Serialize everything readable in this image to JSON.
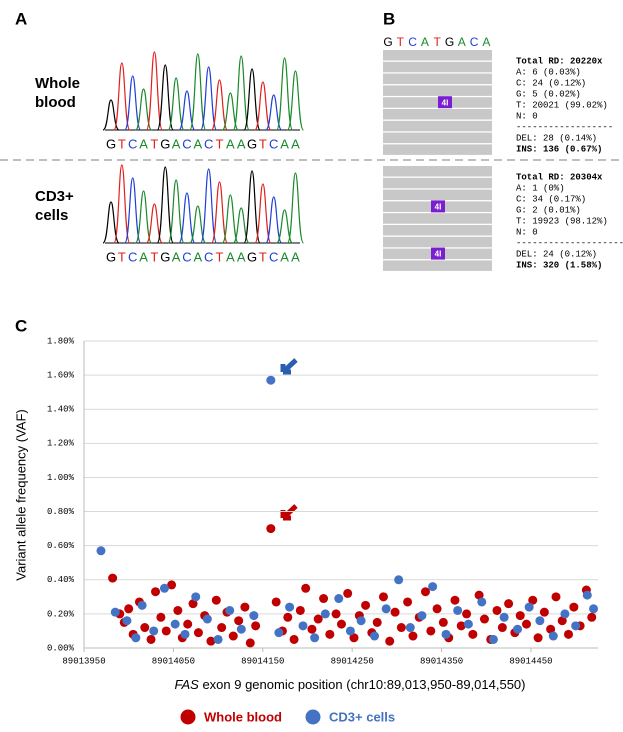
{
  "panel_a": {
    "label": "A",
    "rows": [
      {
        "label": [
          "Whole",
          "blood"
        ],
        "sequence": [
          "G",
          "T",
          "C",
          "A",
          "T",
          "G",
          "A",
          "C",
          "A",
          "C",
          "T",
          "A",
          "A",
          "G",
          "T",
          "C",
          "A",
          "A"
        ]
      },
      {
        "label": [
          "CD3+",
          "cells"
        ],
        "sequence": [
          "G",
          "T",
          "C",
          "A",
          "T",
          "G",
          "A",
          "C",
          "A",
          "C",
          "T",
          "A",
          "A",
          "G",
          "T",
          "C",
          "A",
          "A"
        ]
      }
    ]
  },
  "panel_b": {
    "label": "B",
    "sequence": [
      "G",
      "T",
      "C",
      "A",
      "T",
      "G",
      "A",
      "C",
      "A"
    ],
    "blocks": [
      {
        "markers": [
          "4I"
        ],
        "stats": [
          "Total RD: 20220x",
          "A: 6 (0.03%)",
          "C: 24 (0.12%)",
          "G: 5 (0.02%)",
          "T: 20021 (99.02%)",
          "N: 0",
          "------------------",
          "DEL: 28 (0.14%)",
          "INS: 136 (0.67%)"
        ]
      },
      {
        "markers": [
          "4I",
          "4I"
        ],
        "stats": [
          "Total RD: 20304x",
          "A: 1 (0%)",
          "C: 34 (0.17%)",
          "G: 2 (0.01%)",
          "T: 19923 (98.12%)",
          "N: 0",
          "--------------------",
          "DEL: 24 (0.12%)",
          "INS: 320 (1.58%)"
        ]
      }
    ]
  },
  "chart_data": {
    "type": "scatter",
    "panel_label": "C",
    "y_label": "Variant allele frequency (VAF)",
    "x_label": {
      "gene": "FAS",
      "text": "exon 9 genomic position (chr10:89,013,950-89,014,550)"
    },
    "xlim": [
      89013950,
      89014525
    ],
    "xticks": [
      89013950,
      89014050,
      89014150,
      89014250,
      89014350,
      89014450
    ],
    "ylim": [
      0,
      1.8
    ],
    "yticks": [
      {
        "value": 0,
        "label": "0.00%"
      },
      {
        "value": 0.2,
        "label": "0.20%"
      },
      {
        "value": 0.4,
        "label": "0.40%"
      },
      {
        "value": 0.6,
        "label": "0.60%"
      },
      {
        "value": 0.8,
        "label": "0.80%"
      },
      {
        "value": 1.0,
        "label": "1.00%"
      },
      {
        "value": 1.2,
        "label": "1.20%"
      },
      {
        "value": 1.4,
        "label": "1.40%"
      },
      {
        "value": 1.6,
        "label": "1.60%"
      },
      {
        "value": 1.8,
        "label": "1.80%"
      }
    ],
    "grid": true,
    "series": [
      {
        "name": "Whole blood",
        "color": "#c00000",
        "x": [
          89013982,
          89013990,
          89013995,
          89014000,
          89014005,
          89014012,
          89014018,
          89014025,
          89014030,
          89014036,
          89014042,
          89014048,
          89014055,
          89014060,
          89014066,
          89014072,
          89014078,
          89014085,
          89014092,
          89014098,
          89014104,
          89014110,
          89014117,
          89014123,
          89014130,
          89014136,
          89014142,
          89014159,
          89014165,
          89014172,
          89014178,
          89014185,
          89014192,
          89014198,
          89014205,
          89014212,
          89014218,
          89014225,
          89014232,
          89014238,
          89014245,
          89014252,
          89014258,
          89014265,
          89014272,
          89014278,
          89014285,
          89014292,
          89014298,
          89014305,
          89014312,
          89014318,
          89014325,
          89014332,
          89014338,
          89014345,
          89014352,
          89014358,
          89014365,
          89014372,
          89014378,
          89014385,
          89014392,
          89014398,
          89014405,
          89014412,
          89014418,
          89014425,
          89014432,
          89014438,
          89014445,
          89014452,
          89014458,
          89014465,
          89014472,
          89014478,
          89014485,
          89014492,
          89014498,
          89014505,
          89014512,
          89014518
        ],
        "values": [
          0.41,
          0.2,
          0.15,
          0.23,
          0.08,
          0.27,
          0.12,
          0.05,
          0.33,
          0.18,
          0.1,
          0.37,
          0.22,
          0.06,
          0.14,
          0.26,
          0.09,
          0.19,
          0.04,
          0.28,
          0.12,
          0.21,
          0.07,
          0.16,
          0.24,
          0.03,
          0.13,
          0.7,
          0.27,
          0.1,
          0.18,
          0.05,
          0.22,
          0.35,
          0.11,
          0.17,
          0.29,
          0.08,
          0.2,
          0.14,
          0.32,
          0.06,
          0.19,
          0.25,
          0.09,
          0.15,
          0.3,
          0.04,
          0.21,
          0.12,
          0.27,
          0.07,
          0.18,
          0.33,
          0.1,
          0.23,
          0.15,
          0.06,
          0.28,
          0.13,
          0.2,
          0.08,
          0.31,
          0.17,
          0.05,
          0.22,
          0.12,
          0.26,
          0.09,
          0.19,
          0.14,
          0.28,
          0.06,
          0.21,
          0.11,
          0.3,
          0.16,
          0.08,
          0.24,
          0.13,
          0.34,
          0.18
        ]
      },
      {
        "name": "CD3+ cells",
        "color": "#4472c4",
        "x": [
          89013969,
          89013985,
          89013998,
          89014008,
          89014015,
          89014028,
          89014040,
          89014052,
          89014063,
          89014075,
          89014088,
          89014100,
          89014113,
          89014126,
          89014140,
          89014159,
          89014168,
          89014180,
          89014195,
          89014208,
          89014220,
          89014235,
          89014248,
          89014260,
          89014275,
          89014288,
          89014302,
          89014315,
          89014328,
          89014340,
          89014355,
          89014368,
          89014380,
          89014395,
          89014408,
          89014420,
          89014435,
          89014448,
          89014460,
          89014475,
          89014488,
          89014500,
          89014513,
          89014520
        ],
        "values": [
          0.57,
          0.21,
          0.16,
          0.06,
          0.25,
          0.1,
          0.35,
          0.14,
          0.08,
          0.3,
          0.17,
          0.05,
          0.22,
          0.11,
          0.19,
          1.57,
          0.09,
          0.24,
          0.13,
          0.06,
          0.2,
          0.29,
          0.1,
          0.16,
          0.07,
          0.23,
          0.4,
          0.12,
          0.19,
          0.36,
          0.08,
          0.22,
          0.14,
          0.27,
          0.05,
          0.18,
          0.11,
          0.24,
          0.16,
          0.07,
          0.2,
          0.13,
          0.31,
          0.23
        ]
      }
    ]
  }
}
